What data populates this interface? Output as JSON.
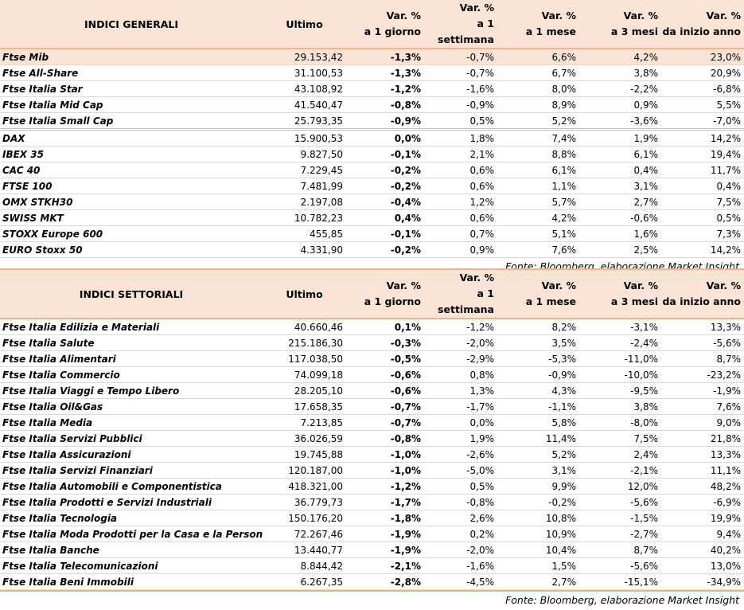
{
  "general": {
    "header": {
      "name": "INDICI GENERALI",
      "last": "Ultimo",
      "var_line1": "Var. %",
      "d1": "a 1 giorno",
      "w1": "a 1 settimana",
      "m1": "a 1 mese",
      "m3": "a 3 mesi",
      "ytd": "da inizio anno"
    },
    "rows": [
      {
        "name": "Ftse Mib",
        "last": "29.153,42",
        "d1": "-1,3%",
        "w1": "-0,7%",
        "m1": "6,6%",
        "m3": "4,2%",
        "ytd": "23,0%"
      },
      {
        "name": "Ftse All-Share",
        "last": "31.100,53",
        "d1": "-1,3%",
        "w1": "-0,7%",
        "m1": "6,7%",
        "m3": "3,8%",
        "ytd": "20,9%"
      },
      {
        "name": "Ftse Italia Star",
        "last": "43.108,92",
        "d1": "-1,2%",
        "w1": "-1,6%",
        "m1": "8,0%",
        "m3": "-2,2%",
        "ytd": "-6,8%"
      },
      {
        "name": "Ftse Italia Mid Cap",
        "last": "41.540,47",
        "d1": "-0,8%",
        "w1": "-0,9%",
        "m1": "8,9%",
        "m3": "0,9%",
        "ytd": "5,5%"
      },
      {
        "name": "Ftse Italia Small Cap",
        "last": "25.793,35",
        "d1": "-0,9%",
        "w1": "0,5%",
        "m1": "5,2%",
        "m3": "-3,6%",
        "ytd": "-7,0%"
      },
      {
        "name": "DAX",
        "last": "15.900,53",
        "d1": "0,0%",
        "w1": "1,8%",
        "m1": "7,4%",
        "m3": "1,9%",
        "ytd": "14,2%"
      },
      {
        "name": "IBEX 35",
        "last": "9.827,50",
        "d1": "-0,1%",
        "w1": "2,1%",
        "m1": "8,8%",
        "m3": "6,1%",
        "ytd": "19,4%"
      },
      {
        "name": "CAC 40",
        "last": "7.229,45",
        "d1": "-0,2%",
        "w1": "0,6%",
        "m1": "6,1%",
        "m3": "0,4%",
        "ytd": "11,7%"
      },
      {
        "name": "FTSE 100",
        "last": "7.481,99",
        "d1": "-0,2%",
        "w1": "0,6%",
        "m1": "1,1%",
        "m3": "3,1%",
        "ytd": "0,4%"
      },
      {
        "name": "OMX STKH30",
        "last": "2.197,08",
        "d1": "-0,4%",
        "w1": "1,2%",
        "m1": "5,7%",
        "m3": "2,7%",
        "ytd": "7,5%"
      },
      {
        "name": "SWISS MKT",
        "last": "10.782,23",
        "d1": "0,4%",
        "w1": "0,6%",
        "m1": "4,2%",
        "m3": "-0,6%",
        "ytd": "0,5%"
      },
      {
        "name": "STOXX Europe 600",
        "last": "455,85",
        "d1": "-0,1%",
        "w1": "0,7%",
        "m1": "5,1%",
        "m3": "1,6%",
        "ytd": "7,3%"
      },
      {
        "name": "EURO Stoxx 50",
        "last": "4.331,90",
        "d1": "-0,2%",
        "w1": "0,9%",
        "m1": "7,6%",
        "m3": "2,5%",
        "ytd": "14,2%"
      }
    ],
    "source": "Fonte: Bloomberg, elaborazione Market Insight"
  },
  "sector": {
    "header": {
      "name": "INDICI SETTORIALI",
      "last": "Ultimo",
      "var_line1": "Var. %",
      "d1": "a 1 giorno",
      "w1": "a 1 settimana",
      "m1": "a 1 mese",
      "m3": "a 3 mesi",
      "ytd": "da inizio anno"
    },
    "rows": [
      {
        "name": "Ftse Italia Edilizia e Materiali",
        "last": "40.660,46",
        "d1": "0,1%",
        "w1": "-1,2%",
        "m1": "8,2%",
        "m3": "-3,1%",
        "ytd": "13,3%"
      },
      {
        "name": "Ftse Italia Salute",
        "last": "215.186,30",
        "d1": "-0,3%",
        "w1": "-2,0%",
        "m1": "3,5%",
        "m3": "-2,4%",
        "ytd": "-5,6%"
      },
      {
        "name": "Ftse Italia Alimentari",
        "last": "117.038,50",
        "d1": "-0,5%",
        "w1": "-2,9%",
        "m1": "-5,3%",
        "m3": "-11,0%",
        "ytd": "8,7%"
      },
      {
        "name": "Ftse Italia Commercio",
        "last": "74.099,18",
        "d1": "-0,6%",
        "w1": "0,8%",
        "m1": "-0,9%",
        "m3": "-10,0%",
        "ytd": "-23,2%"
      },
      {
        "name": "Ftse Italia Viaggi e Tempo Libero",
        "last": "28.205,10",
        "d1": "-0,6%",
        "w1": "1,3%",
        "m1": "4,3%",
        "m3": "-9,5%",
        "ytd": "-1,9%"
      },
      {
        "name": "Ftse Italia Oil&Gas",
        "last": "17.658,35",
        "d1": "-0,7%",
        "w1": "-1,7%",
        "m1": "-1,1%",
        "m3": "3,8%",
        "ytd": "7,6%"
      },
      {
        "name": "Ftse Italia Media",
        "last": "7.213,85",
        "d1": "-0,7%",
        "w1": "0,0%",
        "m1": "5,8%",
        "m3": "-8,0%",
        "ytd": "9,0%"
      },
      {
        "name": "Ftse Italia Servizi Pubblici",
        "last": "36.026,59",
        "d1": "-0,8%",
        "w1": "1,9%",
        "m1": "11,4%",
        "m3": "7,5%",
        "ytd": "21,8%"
      },
      {
        "name": "Ftse Italia Assicurazioni",
        "last": "19.745,88",
        "d1": "-1,0%",
        "w1": "-2,6%",
        "m1": "5,2%",
        "m3": "2,4%",
        "ytd": "13,3%"
      },
      {
        "name": "Ftse Italia Servizi Finanziari",
        "last": "120.187,00",
        "d1": "-1,0%",
        "w1": "-5,0%",
        "m1": "3,1%",
        "m3": "-2,1%",
        "ytd": "11,1%"
      },
      {
        "name": "Ftse Italia Automobili e Componentistica",
        "last": "418.321,00",
        "d1": "-1,2%",
        "w1": "0,5%",
        "m1": "9,9%",
        "m3": "12,0%",
        "ytd": "48,2%"
      },
      {
        "name": "Ftse Italia Prodotti e Servizi Industriali",
        "last": "36.779,73",
        "d1": "-1,7%",
        "w1": "-0,8%",
        "m1": "-0,2%",
        "m3": "-5,6%",
        "ytd": "-6,9%"
      },
      {
        "name": "Ftse Italia Tecnologia",
        "last": "150.176,20",
        "d1": "-1,8%",
        "w1": "2,6%",
        "m1": "10,8%",
        "m3": "-1,5%",
        "ytd": "19,9%"
      },
      {
        "name": "Ftse Italia Moda Prodotti per la Casa e la Persona",
        "last": "72.267,46",
        "d1": "-1,9%",
        "w1": "0,2%",
        "m1": "10,9%",
        "m3": "-2,7%",
        "ytd": "9,4%"
      },
      {
        "name": "Ftse Italia Banche",
        "last": "13.440,77",
        "d1": "-1,9%",
        "w1": "-2,0%",
        "m1": "10,4%",
        "m3": "8,7%",
        "ytd": "40,2%"
      },
      {
        "name": "Ftse Italia Telecomunicazioni",
        "last": "8.844,42",
        "d1": "-2,1%",
        "w1": "-1,6%",
        "m1": "1,5%",
        "m3": "-5,6%",
        "ytd": "13,0%"
      },
      {
        "name": "Ftse Italia Beni Immobili",
        "last": "6.267,35",
        "d1": "-2,8%",
        "w1": "-4,5%",
        "m1": "2,7%",
        "m3": "-15,1%",
        "ytd": "-34,9%"
      }
    ],
    "source": "Fonte: Bloomberg, elaborazione Market Insight"
  }
}
